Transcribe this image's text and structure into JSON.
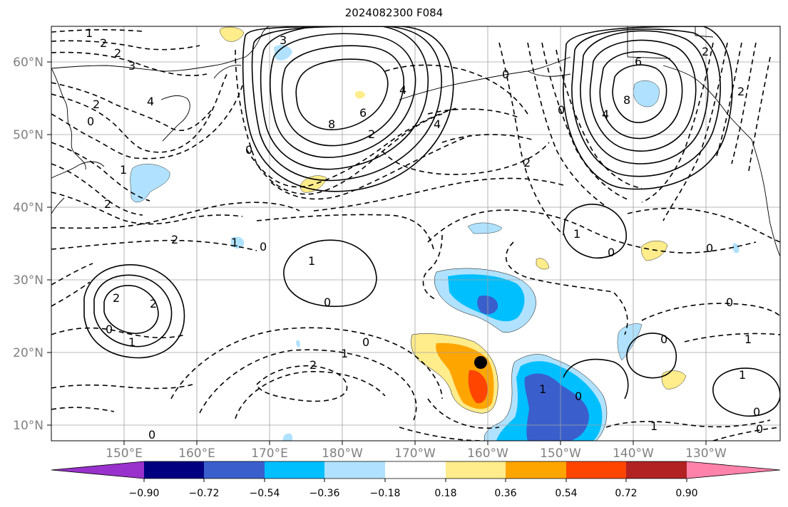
{
  "title": "2024082300 F084",
  "lat_labels": [
    "60°N",
    "50°N",
    "40°N",
    "30°N",
    "20°N",
    "10°N"
  ],
  "lon_labels": [
    "150°E",
    "160°E",
    "170°E",
    "180°W",
    "170°W",
    "160°W",
    "150°W",
    "140°W",
    "130°W"
  ],
  "colorbar": {
    "colors": [
      "#9932cc",
      "#000080",
      "#3a5fcd",
      "#00bfff",
      "#b0e2ff",
      "#ffffff",
      "#ffec8b",
      "#ffa500",
      "#ff4500",
      "#b22222",
      "#ff82ab"
    ],
    "ticks": [
      "−0.90",
      "−0.72",
      "−0.54",
      "−0.36",
      "−0.18",
      "0.18",
      "0.36",
      "0.54",
      "0.72",
      "0.90"
    ]
  },
  "contour_labels": [
    {
      "text": "1"
    },
    {
      "text": "2"
    },
    {
      "text": "2"
    },
    {
      "text": "3"
    },
    {
      "text": "2"
    },
    {
      "text": "0"
    },
    {
      "text": "4"
    },
    {
      "text": "8"
    },
    {
      "text": "6"
    },
    {
      "text": "4"
    },
    {
      "text": "3"
    },
    {
      "text": "2"
    },
    {
      "text": "4"
    },
    {
      "text": "0"
    },
    {
      "text": "6"
    },
    {
      "text": "8"
    },
    {
      "text": "4"
    },
    {
      "text": "2"
    },
    {
      "text": "0"
    },
    {
      "text": "2"
    },
    {
      "text": "2"
    },
    {
      "text": "1"
    },
    {
      "text": "2"
    },
    {
      "text": "1"
    },
    {
      "text": "0"
    },
    {
      "text": "0"
    },
    {
      "text": "1"
    },
    {
      "text": "0"
    },
    {
      "text": "0"
    },
    {
      "text": "1"
    },
    {
      "text": "0"
    },
    {
      "text": "2"
    },
    {
      "text": "2"
    },
    {
      "text": "0"
    },
    {
      "text": "1"
    },
    {
      "text": "1"
    },
    {
      "text": "2"
    },
    {
      "text": "0"
    },
    {
      "text": "0"
    },
    {
      "text": "1"
    },
    {
      "text": "1"
    },
    {
      "text": "0"
    },
    {
      "text": "0"
    },
    {
      "text": "0"
    },
    {
      "text": "1"
    },
    {
      "text": "0"
    },
    {
      "text": "1"
    },
    {
      "text": "0"
    },
    {
      "text": "2"
    }
  ],
  "marker": {
    "name": "storm-center-marker"
  }
}
